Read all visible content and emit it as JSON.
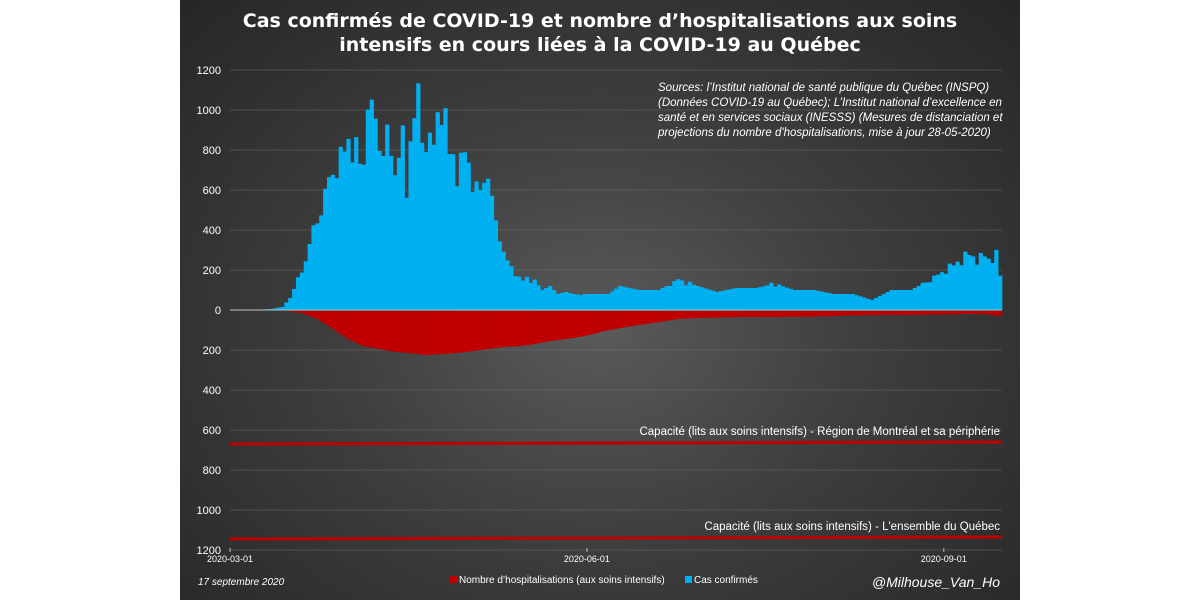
{
  "chart_data": {
    "type": "bar",
    "title_lines": [
      "Cas confirmés de COVID-19 et nombre d’hospitalisations aux soins",
      "intensifs en cours liées à la COVID-19 au Québec"
    ],
    "y_tick_labels": [
      "1200",
      "1000",
      "800",
      "600",
      "400",
      "200",
      "0",
      "200",
      "400",
      "600",
      "800",
      "1000",
      "1200"
    ],
    "ylim": [
      -1200,
      1200
    ],
    "x_tick_labels": [
      "2020-03-01",
      "2020-06-01",
      "2020-09-01"
    ],
    "x_tick_day_index": [
      0,
      92,
      184
    ],
    "source_lines": [
      "Sources: l’Institut national de santé publique du Québec (INSPQ)",
      "(Données COVID-19 au Québec); L’Institut national d’excellence en",
      "santé et en services sociaux (INESSS) (Mesures de distanciation et",
      "projections du nombre d'hospitalisations, mise à jour 28-05-2020)"
    ],
    "capacity_lines": [
      {
        "label": "Capacité (lits aux soins intensifs) - Région de Montréal et sa périphérie",
        "value": 670,
        "color": "#c00000"
      },
      {
        "label": "Capacité (lits aux soins intensifs) - L'ensemble du Québec",
        "value": 1145,
        "color": "#c00000"
      }
    ],
    "series": [
      {
        "name": "Cas confirmés",
        "color": "#00b0f0",
        "anchor_days": [
          0,
          5,
          10,
          13,
          15,
          17,
          19,
          21,
          23,
          25,
          28,
          30,
          32,
          34,
          35,
          36,
          37,
          38,
          40,
          42,
          44,
          45,
          46,
          47,
          48,
          49,
          50,
          52,
          54,
          55,
          56,
          58,
          60,
          62,
          64,
          66,
          68,
          70,
          72,
          75,
          78,
          80,
          82,
          84,
          86,
          88,
          90,
          91,
          94,
          97,
          100,
          105,
          110,
          115,
          120,
          125,
          130,
          135,
          140,
          145,
          150,
          155,
          160,
          165,
          170,
          175,
          180,
          184,
          188,
          190,
          192,
          194,
          196,
          197,
          198
        ],
        "anchor_values": [
          0,
          0,
          5,
          15,
          60,
          150,
          250,
          400,
          500,
          650,
          750,
          850,
          780,
          720,
          1100,
          950,
          980,
          800,
          850,
          700,
          870,
          550,
          910,
          950,
          1100,
          800,
          880,
          820,
          1050,
          950,
          780,
          700,
          780,
          650,
          580,
          700,
          420,
          300,
          200,
          150,
          150,
          100,
          120,
          80,
          90,
          80,
          75,
          80,
          80,
          80,
          120,
          100,
          100,
          150,
          120,
          90,
          110,
          110,
          130,
          100,
          100,
          80,
          80,
          50,
          100,
          100,
          150,
          200,
          250,
          280,
          250,
          270,
          250,
          280,
          170
        ],
        "values": []
      },
      {
        "name": "Nombre d’hospitalisations (aux soins intensifs)",
        "color": "#c00000",
        "anchor_days": [
          0,
          14,
          18,
          22,
          26,
          30,
          34,
          38,
          42,
          46,
          50,
          54,
          58,
          62,
          66,
          70,
          74,
          78,
          82,
          86,
          88,
          92,
          96,
          100,
          105,
          110,
          115,
          120,
          130,
          140,
          150,
          160,
          170,
          180,
          190,
          194,
          198
        ],
        "anchor_values": [
          0,
          0,
          10,
          40,
          90,
          140,
          175,
          190,
          205,
          210,
          220,
          215,
          210,
          200,
          190,
          180,
          175,
          165,
          150,
          140,
          135,
          120,
          100,
          85,
          70,
          55,
          40,
          35,
          30,
          30,
          28,
          22,
          20,
          18,
          15,
          15,
          25
        ],
        "values": []
      }
    ],
    "legend": [
      {
        "label": "Nombre d’hospitalisations (aux soins intensifs)",
        "color": "#c00000"
      },
      {
        "label": "Cas confirmés",
        "color": "#00b0f0"
      }
    ],
    "legend_position": "bottom-center"
  },
  "footer": {
    "date": "17 septembre 2020",
    "credit": "@Milhouse_Van_Ho"
  }
}
